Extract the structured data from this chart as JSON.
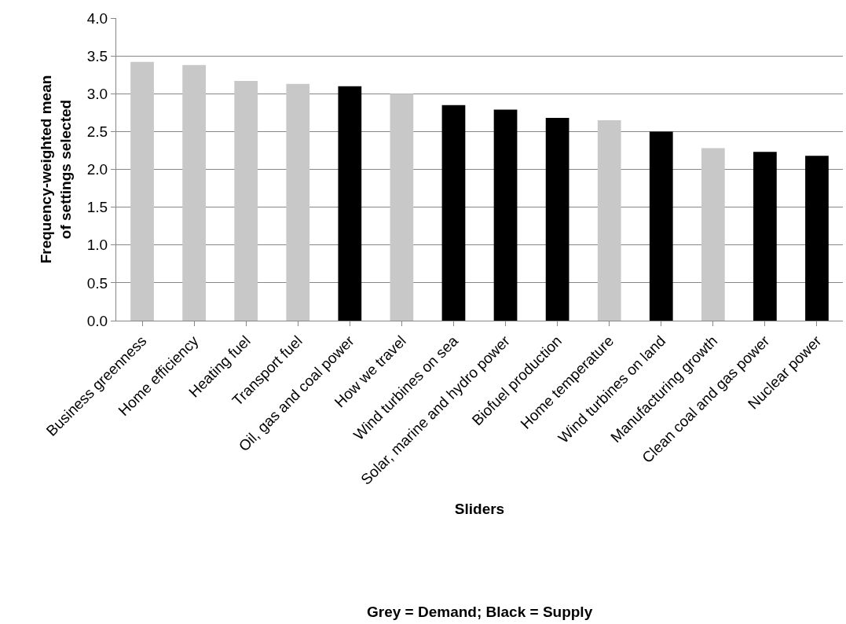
{
  "chart_data": {
    "type": "bar",
    "categories": [
      "Business greenness",
      "Home efficiency",
      "Heating fuel",
      "Transport fuel",
      "Oil, gas and coal power",
      "How we travel",
      "Wind turbines on sea",
      "Solar, marine and hydro power",
      "Biofuel production",
      "Home temperature",
      "Wind turbines on land",
      "Manufacturing growth",
      "Clean coal and gas power",
      "Nuclear power"
    ],
    "values": [
      3.42,
      3.38,
      3.17,
      3.13,
      3.1,
      3.0,
      2.85,
      2.79,
      2.68,
      2.65,
      2.5,
      2.28,
      2.23,
      2.18
    ],
    "colors": [
      "#c8c8c8",
      "#c8c8c8",
      "#c8c8c8",
      "#c8c8c8",
      "#000000",
      "#c8c8c8",
      "#000000",
      "#000000",
      "#000000",
      "#c8c8c8",
      "#000000",
      "#c8c8c8",
      "#000000",
      "#000000"
    ],
    "ylabel": "Frequency-weighted mean\nof settings selected",
    "xlabel": "Sliders",
    "annotations": [
      "Grey = Demand; Black = Supply"
    ],
    "ylim": [
      0,
      4
    ],
    "yticks": [
      {
        "value": 0,
        "label": "0.0"
      },
      {
        "value": 0.5,
        "label": "0.5"
      },
      {
        "value": 1,
        "label": "1.0"
      },
      {
        "value": 1.5,
        "label": "1.5"
      },
      {
        "value": 2,
        "label": "2.0"
      },
      {
        "value": 2.5,
        "label": "2.5"
      },
      {
        "value": 3,
        "label": "3.0"
      },
      {
        "value": 3.5,
        "label": "3.5"
      },
      {
        "value": 4,
        "label": "4.0"
      }
    ],
    "grid": "y",
    "legend": false
  }
}
